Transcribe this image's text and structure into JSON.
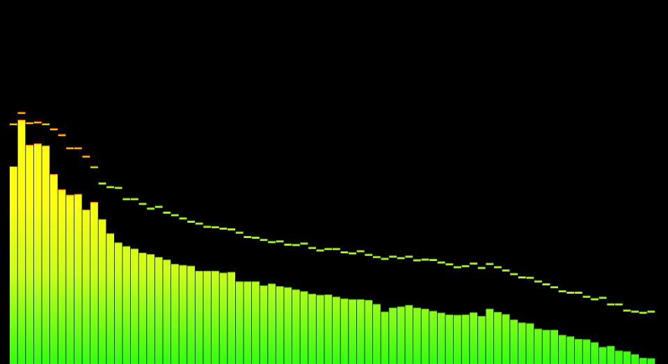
{
  "visualizer": {
    "background": "#000000",
    "band_count": 80,
    "level_max": 1.0,
    "gradient_colors": {
      "bar_high": "#ffff10",
      "bar_mid": "#ccff18",
      "bar_low": "#33ff10",
      "peak_hot": "#ff2a00",
      "peak_warm": "#ffd700",
      "peak_cool": "#b8ff30"
    },
    "bar_levels": [
      0.543,
      0.671,
      0.602,
      0.606,
      0.6,
      0.522,
      0.48,
      0.465,
      0.467,
      0.424,
      0.445,
      0.398,
      0.359,
      0.334,
      0.324,
      0.317,
      0.306,
      0.302,
      0.294,
      0.287,
      0.275,
      0.272,
      0.27,
      0.256,
      0.256,
      0.256,
      0.251,
      0.253,
      0.227,
      0.227,
      0.227,
      0.216,
      0.221,
      0.214,
      0.211,
      0.205,
      0.2,
      0.193,
      0.19,
      0.191,
      0.185,
      0.18,
      0.178,
      0.178,
      0.176,
      0.165,
      0.144,
      0.155,
      0.158,
      0.162,
      0.155,
      0.152,
      0.146,
      0.141,
      0.136,
      0.135,
      0.136,
      0.142,
      0.132,
      0.152,
      0.143,
      0.137,
      0.122,
      0.114,
      0.112,
      0.097,
      0.094,
      0.094,
      0.08,
      0.076,
      0.069,
      0.068,
      0.06,
      0.047,
      0.05,
      0.037,
      0.035,
      0.027,
      0.017,
      0.016
    ],
    "peak_levels": [
      0.659,
      0.69,
      0.662,
      0.664,
      0.659,
      0.645,
      0.629,
      0.593,
      0.593,
      0.57,
      0.541,
      0.496,
      0.486,
      0.484,
      0.453,
      0.453,
      0.44,
      0.427,
      0.432,
      0.416,
      0.409,
      0.4,
      0.391,
      0.386,
      0.377,
      0.376,
      0.372,
      0.37,
      0.361,
      0.349,
      0.347,
      0.341,
      0.335,
      0.337,
      0.328,
      0.327,
      0.331,
      0.319,
      0.312,
      0.316,
      0.316,
      0.307,
      0.304,
      0.31,
      0.3,
      0.294,
      0.289,
      0.295,
      0.291,
      0.295,
      0.285,
      0.287,
      0.286,
      0.279,
      0.274,
      0.266,
      0.269,
      0.276,
      0.264,
      0.275,
      0.266,
      0.257,
      0.247,
      0.238,
      0.237,
      0.227,
      0.219,
      0.211,
      0.2,
      0.196,
      0.196,
      0.185,
      0.178,
      0.182,
      0.164,
      0.164,
      0.147,
      0.144,
      0.141,
      0.144
    ]
  }
}
